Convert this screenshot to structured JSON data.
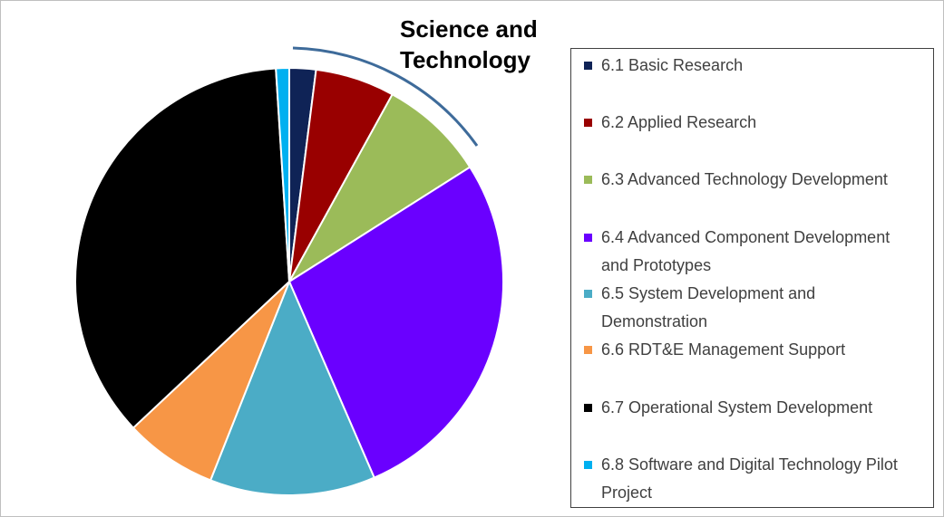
{
  "chart_data": {
    "type": "pie",
    "title": "Science and Technology",
    "categories": [
      "6.1 Basic Research",
      "6.2  Applied Research",
      "6.3  Advanced Technology Development",
      "6.4 Advanced Component Development and Prototypes",
      "6.5 System Development and Demonstration",
      "6.6 RDT&E Management Support",
      "6.7 Operational System Development",
      "6.8 Software and Digital Technology Pilot Project"
    ],
    "values": [
      2,
      6,
      8,
      27.5,
      12.5,
      7,
      36,
      1
    ],
    "colors": [
      "#0f2356",
      "#990000",
      "#9bbb59",
      "#6a00ff",
      "#4bacc6",
      "#f79646",
      "#000000",
      "#00b0f0"
    ],
    "legend": "right"
  }
}
